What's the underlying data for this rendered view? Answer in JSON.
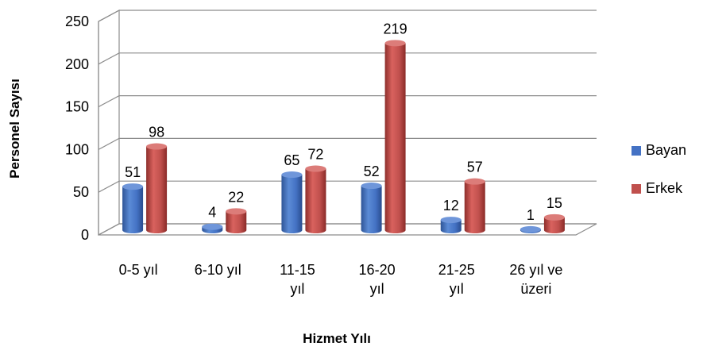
{
  "chart_data": {
    "type": "bar",
    "variant": "3d-clustered-cylinder",
    "categories": [
      [
        "0-5 yıl"
      ],
      [
        "6-10 yıl"
      ],
      [
        "11-15",
        "yıl"
      ],
      [
        "16-20",
        "yıl"
      ],
      [
        "21-25",
        "yıl"
      ],
      [
        "26 yıl ve",
        "üzeri"
      ]
    ],
    "series": [
      {
        "name": "Bayan",
        "values": [
          51,
          4,
          65,
          52,
          12,
          1
        ],
        "color": "#4472C4"
      },
      {
        "name": "Erkek",
        "values": [
          98,
          22,
          72,
          219,
          57,
          15
        ],
        "color": "#C0504D"
      }
    ],
    "xlabel": "Hizmet Yılı",
    "ylabel": "Personel Sayısı",
    "ylim": [
      0,
      250
    ],
    "yticks": [
      0,
      50,
      100,
      150,
      200,
      250
    ],
    "grid": true,
    "legend": "right"
  }
}
